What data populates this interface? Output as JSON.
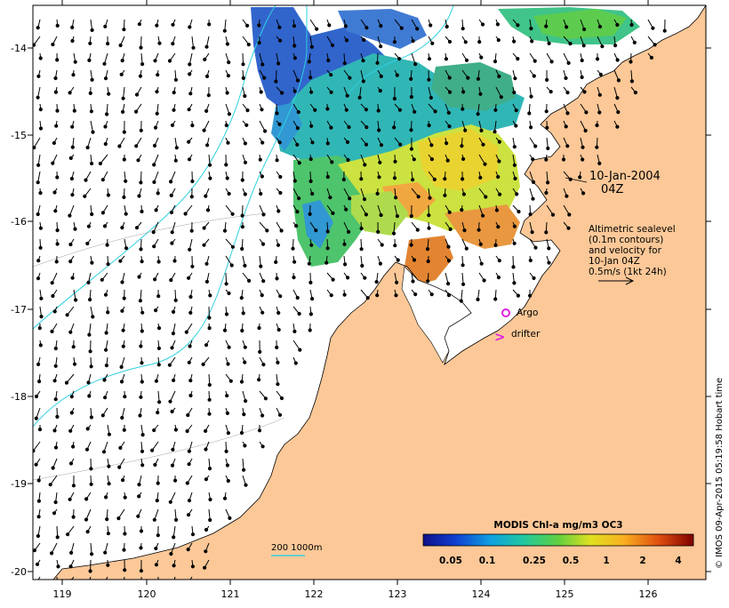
{
  "map": {
    "date_label": "10-Jan-2004",
    "time_label": "04Z",
    "info_lines": [
      "Altimetric sealevel",
      "(0.1m contours)",
      "and velocity for",
      "10-Jan 04Z",
      "0.5m/s (1kt 24h)"
    ],
    "legend": {
      "argo_label": "Argo",
      "drifter_label": "drifter",
      "drifter_symbol": ">",
      "argo_color": "#e020e0",
      "drifter_color": "#e020e0"
    },
    "depth_label": "200  1000m",
    "depth_line_color": "#30d0e0",
    "land_color": "#fcc898",
    "colorbar": {
      "title": "MODIS Chl-a mg/m3 OC3",
      "tick_labels": [
        "0.05",
        "0.1",
        "0.25",
        "0.5",
        "1",
        "2",
        "4"
      ],
      "colors": [
        "#10108a",
        "#1040d0",
        "#10a0e0",
        "#20c8a0",
        "#40d040",
        "#c8e820",
        "#f8c020",
        "#f07010",
        "#c02010",
        "#800000"
      ]
    },
    "lon_ticks": [
      "119",
      "120",
      "121",
      "122",
      "123",
      "124",
      "125",
      "126"
    ],
    "lat_ticks": [
      "-14",
      "-15",
      "-16",
      "-17",
      "-18",
      "-19",
      "-20"
    ],
    "credit": "© IMOS 09-Apr-2015 05:19:58 Hobart time"
  }
}
